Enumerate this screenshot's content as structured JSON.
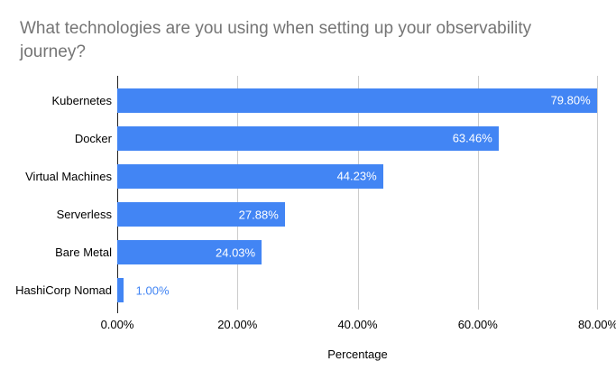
{
  "chart_data": {
    "type": "bar",
    "orientation": "horizontal",
    "title": "What technologies are you using when setting up your observability journey?",
    "categories": [
      "Kubernetes",
      "Docker",
      "Virtual Machines",
      "Serverless",
      "Bare Metal",
      "HashiCorp Nomad"
    ],
    "values": [
      79.8,
      63.46,
      44.23,
      27.88,
      24.03,
      1.0
    ],
    "value_labels": [
      "79.80%",
      "63.46%",
      "44.23%",
      "27.88%",
      "24.03%",
      "1.00%"
    ],
    "xlabel": "Percentage",
    "x_tick_labels": [
      "0.00%",
      "20.00%",
      "40.00%",
      "60.00%",
      "80.00%"
    ],
    "xlim": [
      0,
      80
    ],
    "grid": true,
    "legend": "none",
    "bar_color": "#4285f4",
    "value_label_color_inside": "#ffffff",
    "value_label_color_outside": "#4285f4",
    "title_color": "#757575",
    "gridline_color": "#cccccc",
    "baseline_color": "#212121",
    "background_color": "#ffffff"
  }
}
